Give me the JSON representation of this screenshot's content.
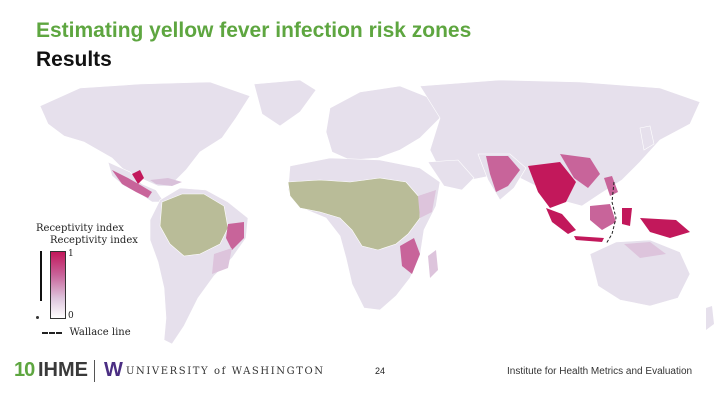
{
  "header": {
    "title": "Estimating yellow fever infection risk zones",
    "subtitle": "Results"
  },
  "legend": {
    "title_line1": "Receptivity index",
    "title_line2": "Receptivity index",
    "max_label": "1",
    "min_label": "0",
    "wallace_label": "Wallace line"
  },
  "footer": {
    "logo_10": "10",
    "logo_ihme": "IHME",
    "logo_w": "W",
    "logo_uw": "UNIVERSITY of WASHINGTON",
    "page_number": "24",
    "institute": "Institute for Health Metrics and Evaluation"
  },
  "map_colors": {
    "land": "#e6e0ec",
    "endemic": "#b9bc98",
    "high": "#c2185b",
    "medium": "#cf6fa3",
    "low": "#ddc7de",
    "border": "#ffffff"
  }
}
